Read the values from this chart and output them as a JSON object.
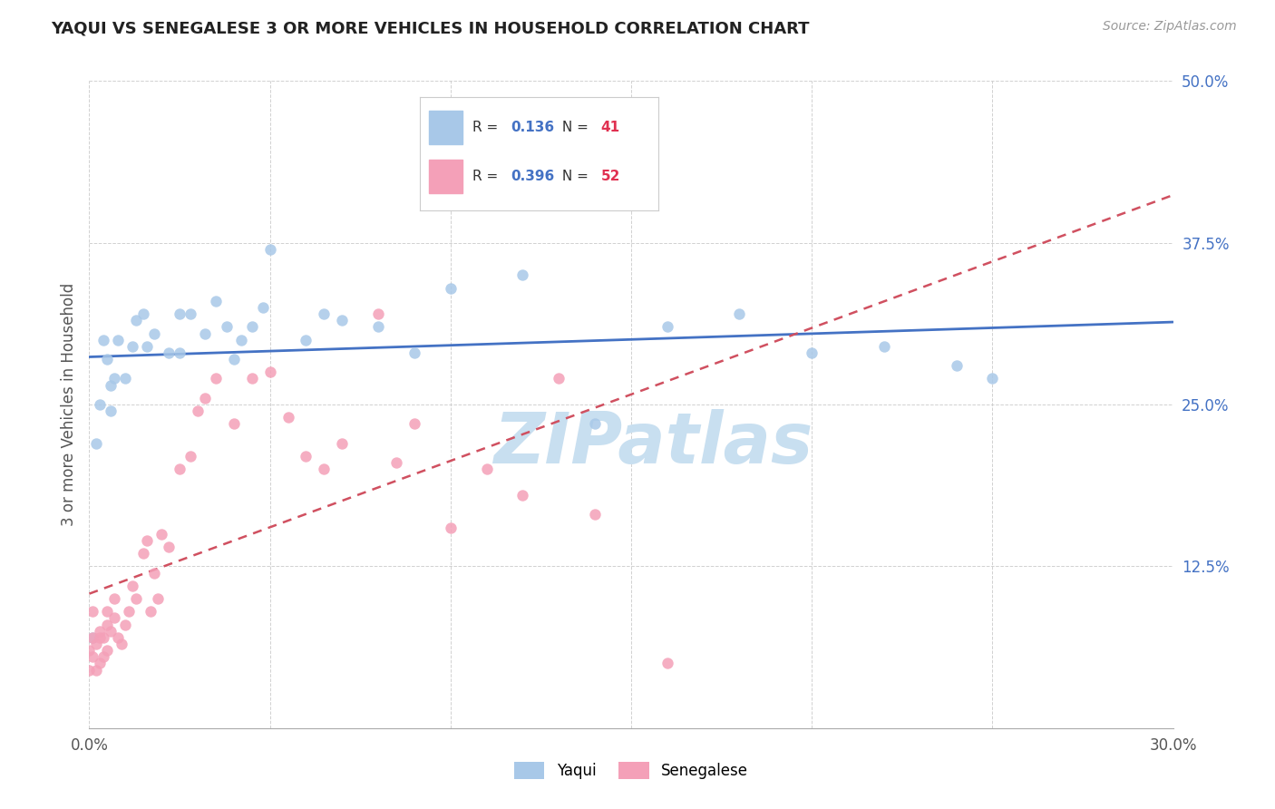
{
  "title": "YAQUI VS SENEGALESE 3 OR MORE VEHICLES IN HOUSEHOLD CORRELATION CHART",
  "source": "Source: ZipAtlas.com",
  "ylabel": "3 or more Vehicles in Household",
  "xlim": [
    0.0,
    0.3
  ],
  "ylim": [
    0.0,
    0.5
  ],
  "xticks": [
    0.0,
    0.05,
    0.1,
    0.15,
    0.2,
    0.25,
    0.3
  ],
  "xticklabels": [
    "0.0%",
    "",
    "",
    "",
    "",
    "",
    "30.0%"
  ],
  "yticks": [
    0.0,
    0.125,
    0.25,
    0.375,
    0.5
  ],
  "yticklabels": [
    "",
    "12.5%",
    "25.0%",
    "37.5%",
    "50.0%"
  ],
  "yaqui_R": 0.136,
  "yaqui_N": 41,
  "senegalese_R": 0.396,
  "senegalese_N": 52,
  "yaqui_color": "#a8c8e8",
  "senegalese_color": "#f4a0b8",
  "trend_yaqui_color": "#4472c4",
  "trend_senegalese_color": "#d05060",
  "ytick_color": "#4472c4",
  "watermark_color": "#c8dff0",
  "yaqui_x": [
    0.001,
    0.002,
    0.003,
    0.004,
    0.005,
    0.006,
    0.006,
    0.007,
    0.008,
    0.01,
    0.012,
    0.013,
    0.015,
    0.016,
    0.018,
    0.022,
    0.025,
    0.025,
    0.028,
    0.032,
    0.035,
    0.038,
    0.04,
    0.042,
    0.045,
    0.048,
    0.05,
    0.06,
    0.065,
    0.07,
    0.08,
    0.09,
    0.1,
    0.12,
    0.14,
    0.16,
    0.18,
    0.2,
    0.22,
    0.24,
    0.25
  ],
  "yaqui_y": [
    0.07,
    0.22,
    0.25,
    0.3,
    0.285,
    0.265,
    0.245,
    0.27,
    0.3,
    0.27,
    0.295,
    0.315,
    0.32,
    0.295,
    0.305,
    0.29,
    0.32,
    0.29,
    0.32,
    0.305,
    0.33,
    0.31,
    0.285,
    0.3,
    0.31,
    0.325,
    0.37,
    0.3,
    0.32,
    0.315,
    0.31,
    0.29,
    0.34,
    0.35,
    0.235,
    0.31,
    0.32,
    0.29,
    0.295,
    0.28,
    0.27
  ],
  "senegalese_x": [
    0.0,
    0.0,
    0.001,
    0.001,
    0.001,
    0.002,
    0.002,
    0.003,
    0.003,
    0.003,
    0.004,
    0.004,
    0.005,
    0.005,
    0.005,
    0.006,
    0.007,
    0.007,
    0.008,
    0.009,
    0.01,
    0.011,
    0.012,
    0.013,
    0.015,
    0.016,
    0.017,
    0.018,
    0.019,
    0.02,
    0.022,
    0.025,
    0.028,
    0.03,
    0.032,
    0.035,
    0.04,
    0.045,
    0.05,
    0.055,
    0.06,
    0.065,
    0.07,
    0.08,
    0.085,
    0.09,
    0.1,
    0.11,
    0.12,
    0.13,
    0.14,
    0.16
  ],
  "senegalese_y": [
    0.045,
    0.06,
    0.055,
    0.07,
    0.09,
    0.045,
    0.065,
    0.05,
    0.07,
    0.075,
    0.055,
    0.07,
    0.06,
    0.08,
    0.09,
    0.075,
    0.085,
    0.1,
    0.07,
    0.065,
    0.08,
    0.09,
    0.11,
    0.1,
    0.135,
    0.145,
    0.09,
    0.12,
    0.1,
    0.15,
    0.14,
    0.2,
    0.21,
    0.245,
    0.255,
    0.27,
    0.235,
    0.27,
    0.275,
    0.24,
    0.21,
    0.2,
    0.22,
    0.32,
    0.205,
    0.235,
    0.155,
    0.2,
    0.18,
    0.27,
    0.165,
    0.05
  ]
}
